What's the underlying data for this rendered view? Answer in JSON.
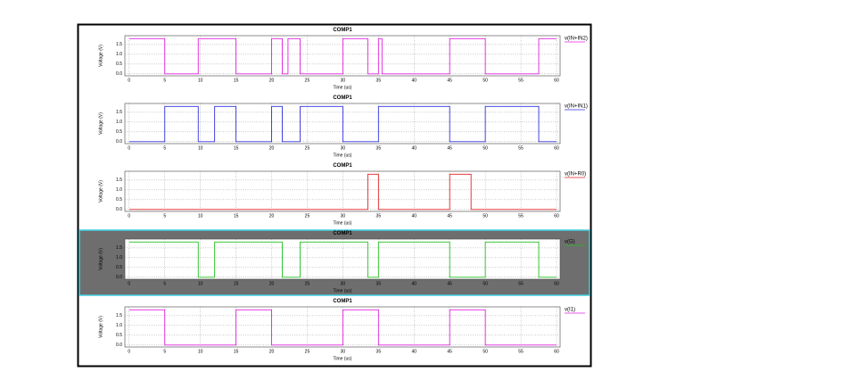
{
  "chart_data": [
    {
      "type": "line",
      "title": "COMP1",
      "xlabel": "Time (us)",
      "ylabel": "Voltage (V)",
      "xlim": [
        -0.6,
        60.5
      ],
      "ylim": [
        -0.1,
        1.95
      ],
      "xticks": [
        0,
        5,
        10,
        15,
        20,
        25,
        30,
        35,
        40,
        45,
        50,
        55,
        60
      ],
      "yticks": [
        {
          "value": 0,
          "label": "0.0"
        },
        {
          "value": 0.5,
          "label": "0.5"
        },
        {
          "value": 1,
          "label": "1.0"
        },
        {
          "value": 1.5,
          "label": "1.5"
        }
      ],
      "grid": true,
      "x": [
        0,
        5,
        5,
        9.7,
        9.7,
        15,
        15,
        20,
        20,
        21.5,
        21.5,
        22.3,
        22.3,
        24,
        24,
        30,
        30,
        33.5,
        33.5,
        35,
        35,
        35.5,
        35.5,
        45,
        45,
        50,
        50,
        57.5,
        57.5,
        60
      ],
      "series": [
        {
          "name": "v(IN+IN2)",
          "color": "#e020e0",
          "values": [
            1.8,
            1.8,
            0,
            0,
            1.8,
            1.8,
            0,
            0,
            1.8,
            1.8,
            0,
            0,
            1.8,
            1.8,
            0,
            0,
            1.8,
            1.8,
            0,
            0,
            1.8,
            1.8,
            0,
            0,
            1.8,
            1.8,
            0,
            0,
            1.8,
            1.8
          ]
        }
      ]
    },
    {
      "type": "line",
      "title": "COMP1",
      "xlabel": "Time (us)",
      "ylabel": "Voltage (V)",
      "xlim": [
        -0.6,
        60.5
      ],
      "ylim": [
        -0.1,
        1.95
      ],
      "xticks": [
        0,
        5,
        10,
        15,
        20,
        25,
        30,
        35,
        40,
        45,
        50,
        55,
        60
      ],
      "yticks": [
        {
          "value": 0,
          "label": "0.0"
        },
        {
          "value": 0.5,
          "label": "0.5"
        },
        {
          "value": 1,
          "label": "1.0"
        },
        {
          "value": 1.5,
          "label": "1.5"
        }
      ],
      "grid": true,
      "x": [
        0,
        5,
        5,
        9.7,
        9.7,
        12,
        12,
        15,
        15,
        20,
        20,
        21.5,
        21.5,
        24,
        24,
        30,
        30,
        35,
        35,
        45,
        45,
        50,
        50,
        57.5,
        57.5,
        60
      ],
      "series": [
        {
          "name": "v(IN+IN1)",
          "color": "#3030e0",
          "values": [
            0,
            0,
            1.8,
            1.8,
            0,
            0,
            1.8,
            1.8,
            0,
            0,
            1.8,
            1.8,
            0,
            0,
            1.8,
            1.8,
            0,
            0,
            1.8,
            1.8,
            0,
            0,
            1.8,
            1.8,
            0,
            0
          ]
        }
      ]
    },
    {
      "type": "line",
      "title": "COMP1",
      "xlabel": "Time (us)",
      "ylabel": "Voltage (V)",
      "xlim": [
        -0.6,
        60.5
      ],
      "ylim": [
        -0.1,
        1.95
      ],
      "xticks": [
        0,
        5,
        10,
        15,
        20,
        25,
        30,
        35,
        40,
        45,
        50,
        55,
        60
      ],
      "yticks": [
        {
          "value": 0,
          "label": "0.0"
        },
        {
          "value": 0.5,
          "label": "0.5"
        },
        {
          "value": 1,
          "label": "1.0"
        },
        {
          "value": 1.5,
          "label": "1.5"
        }
      ],
      "grid": true,
      "x": [
        0,
        33.5,
        33.5,
        35,
        35,
        45,
        45,
        48,
        48,
        60
      ],
      "series": [
        {
          "name": "v(IN+R0)",
          "color": "#e02020",
          "values": [
            0,
            0,
            1.8,
            1.8,
            0,
            0,
            1.8,
            1.8,
            0,
            0
          ]
        }
      ]
    },
    {
      "type": "line",
      "title": "COMP1",
      "xlabel": "Time (us)",
      "ylabel": "Voltage (V)",
      "xlim": [
        -0.6,
        60.5
      ],
      "ylim": [
        -0.1,
        1.95
      ],
      "xticks": [
        0,
        5,
        10,
        15,
        20,
        25,
        30,
        35,
        40,
        45,
        50,
        55,
        60
      ],
      "yticks": [
        {
          "value": 0,
          "label": "0.0"
        },
        {
          "value": 0.5,
          "label": "0.5"
        },
        {
          "value": 1,
          "label": "1.0"
        },
        {
          "value": 1.5,
          "label": "1.5"
        }
      ],
      "grid": true,
      "background": "#6e6e6e",
      "border_color": "#40d0e0",
      "x": [
        0,
        9.7,
        9.7,
        12,
        12,
        21.5,
        21.5,
        24,
        24,
        33.5,
        33.5,
        35,
        35,
        45,
        45,
        50,
        50,
        57.5,
        57.5,
        60
      ],
      "series": [
        {
          "name": "v(G)",
          "color": "#20c020",
          "values": [
            1.8,
            1.8,
            0,
            0,
            1.8,
            1.8,
            0,
            0,
            1.8,
            1.8,
            0,
            0,
            1.8,
            1.8,
            0,
            0,
            1.8,
            1.8,
            0,
            0
          ]
        }
      ]
    },
    {
      "type": "line",
      "title": "COMP1",
      "xlabel": "Time (us)",
      "ylabel": "Voltage (V)",
      "xlim": [
        -0.6,
        60.5
      ],
      "ylim": [
        -0.1,
        1.95
      ],
      "xticks": [
        0,
        5,
        10,
        15,
        20,
        25,
        30,
        35,
        40,
        45,
        50,
        55,
        60
      ],
      "yticks": [
        {
          "value": 0,
          "label": "0.0"
        },
        {
          "value": 0.5,
          "label": "0.5"
        },
        {
          "value": 1,
          "label": "1.0"
        },
        {
          "value": 1.5,
          "label": "1.5"
        }
      ],
      "grid": true,
      "x": [
        0,
        5,
        5,
        15,
        15,
        20,
        20,
        30,
        30,
        35,
        35,
        45,
        45,
        50,
        50,
        60
      ],
      "series": [
        {
          "name": "v(I1)",
          "color": "#e020e0",
          "values": [
            1.8,
            1.8,
            0,
            0,
            1.8,
            1.8,
            0,
            0,
            1.8,
            1.8,
            0,
            0,
            1.8,
            1.8,
            0,
            0
          ]
        }
      ]
    }
  ]
}
